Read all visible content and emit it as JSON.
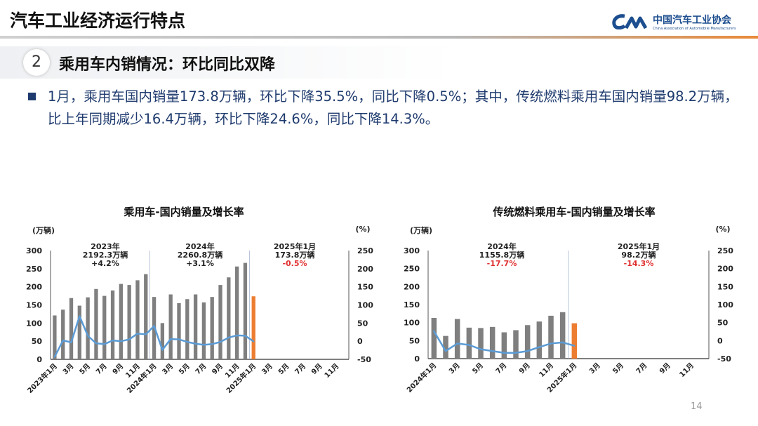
{
  "header": {
    "title": "汽车工业经济运行特点",
    "logo_cn": "中国汽车工业协会",
    "logo_en": "China Association of Automobile Manufacturers"
  },
  "section": {
    "number": "2",
    "title": "乘用车内销情况：环比同比双降"
  },
  "bullet": "1月，乘用车国内销量173.8万辆，环比下降35.5%，同比下降0.5%；其中，传统燃料乘用车国内销量98.2万辆，比上年同期减少16.4万辆，环比下降24.6%，同比下降14.3%。",
  "page_number": "14",
  "colors": {
    "bar": "#7f7f7f",
    "bar_current": "#ed7d31",
    "line": "#5b9bd5",
    "negative": "#e03030",
    "text_blue": "#1f3b6e"
  },
  "chart_data": [
    {
      "type": "bar+line",
      "title": "乘用车-国内销量及增长率",
      "ylabel_left": "(万辆)",
      "ylabel_right": "(%)",
      "ylim_left": [
        0,
        300
      ],
      "ylim_right": [
        -50,
        250
      ],
      "yticks_left": [
        "300",
        "250",
        "200",
        "150",
        "100",
        "50",
        "0"
      ],
      "yticks_right": [
        "250",
        "200",
        "150",
        "100",
        "50",
        "0",
        "-50"
      ],
      "xtick_labels": [
        "2023年1月",
        "3月",
        "5月",
        "7月",
        "9月",
        "11月",
        "2024年1月",
        "3月",
        "5月",
        "7月",
        "9月",
        "11月",
        "2025年1月",
        "3月",
        "5月",
        "7月",
        "9月",
        "11月"
      ],
      "months": 36,
      "sales": [
        121,
        137,
        169,
        148,
        171,
        194,
        175,
        190,
        208,
        205,
        218,
        235,
        172,
        100,
        179,
        155,
        166,
        179,
        157,
        172,
        205,
        226,
        256,
        266,
        173.8
      ],
      "growth": [
        -43,
        2,
        -3,
        69,
        15,
        -6,
        -8,
        2,
        0,
        5,
        21,
        19,
        42,
        -24,
        6,
        5,
        -2,
        -7,
        -10,
        -8,
        -2,
        10,
        16,
        15,
        -0.5
      ],
      "annotations": [
        {
          "lines": [
            "2023年",
            "2192.3万辆",
            "+4.2%"
          ],
          "negative": false
        },
        {
          "lines": [
            "2024年",
            "2260.8万辆",
            "+3.1%"
          ],
          "negative": false
        },
        {
          "lines": [
            "2025年1月",
            "173.8万辆",
            "-0.5%"
          ],
          "negative": true
        }
      ],
      "grid": false
    },
    {
      "type": "bar+line",
      "title": "传统燃料乘用车-国内销量及增长率",
      "ylabel_left": "(万辆)",
      "ylabel_right": "(%)",
      "ylim_left": [
        0,
        300
      ],
      "ylim_right": [
        -50,
        250
      ],
      "yticks_left": [
        "300",
        "250",
        "200",
        "150",
        "100",
        "50",
        "0"
      ],
      "yticks_right": [
        "250",
        "200",
        "150",
        "100",
        "50",
        "0",
        "-50"
      ],
      "xtick_labels": [
        "2024年1月",
        "3月",
        "5月",
        "7月",
        "9月",
        "11月",
        "2025年1月",
        "3月",
        "5月",
        "7月",
        "9月",
        "11月"
      ],
      "months": 24,
      "sales": [
        113,
        63,
        110,
        86,
        85,
        88,
        73,
        79,
        93,
        103,
        119,
        129,
        98.2
      ],
      "growth": [
        26,
        -29,
        -8,
        -12,
        -24,
        -29,
        -34,
        -34,
        -29,
        -18,
        -8,
        -5,
        -14.3
      ],
      "annotations": [
        {
          "lines": [
            "2024年",
            "1155.8万辆",
            "-17.7%"
          ],
          "negative": true
        },
        {
          "lines": [
            "2025年1月",
            "98.2万辆",
            "-14.3%"
          ],
          "negative": true
        }
      ],
      "grid": false
    }
  ]
}
